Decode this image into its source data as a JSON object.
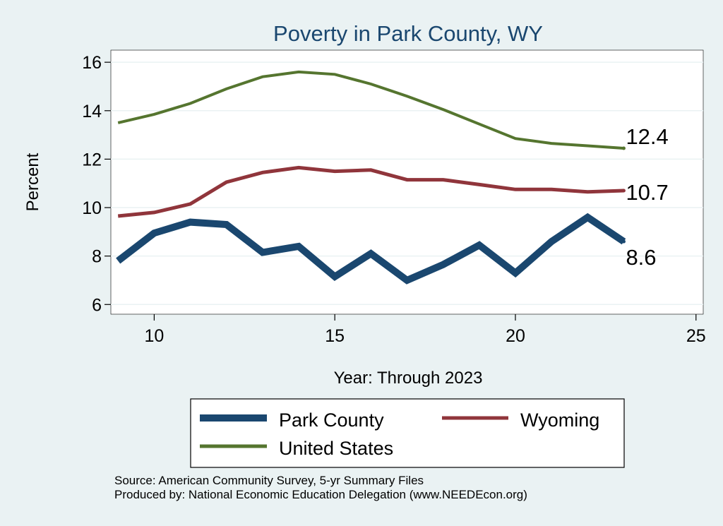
{
  "chart_data": {
    "type": "line",
    "title": "Poverty in Park County, WY",
    "xlabel": "Year: Through 2023",
    "ylabel": "Percent",
    "xlim": [
      8.8,
      25.2
    ],
    "ylim": [
      5.6,
      16.5
    ],
    "xticks": [
      10,
      15,
      20,
      25
    ],
    "yticks": [
      6,
      8,
      10,
      12,
      14,
      16
    ],
    "grid": "horizontal",
    "x": [
      9,
      10,
      11,
      12,
      13,
      14,
      15,
      16,
      17,
      18,
      19,
      20,
      21,
      22,
      23
    ],
    "series": [
      {
        "name": "Park County",
        "color": "#1a476f",
        "values": [
          7.8,
          8.95,
          9.4,
          9.3,
          8.15,
          8.4,
          7.15,
          8.1,
          7.0,
          7.65,
          8.45,
          7.3,
          8.6,
          9.6,
          8.6
        ],
        "end_label": "8.6"
      },
      {
        "name": "Wyoming",
        "color": "#90353b",
        "values": [
          9.65,
          9.8,
          10.15,
          11.05,
          11.45,
          11.65,
          11.5,
          11.55,
          11.15,
          11.15,
          10.95,
          10.75,
          10.75,
          10.65,
          10.7
        ],
        "end_label": "10.7"
      },
      {
        "name": "United States",
        "color": "#55752f",
        "values": [
          13.5,
          13.85,
          14.3,
          14.9,
          15.4,
          15.6,
          15.5,
          15.1,
          14.6,
          14.05,
          13.45,
          12.85,
          12.65,
          12.55,
          12.45
        ],
        "end_label": "12.4"
      }
    ],
    "legend": {
      "position": "bottom",
      "entries": [
        "Park County",
        "Wyoming",
        "United States"
      ]
    }
  },
  "footer": {
    "source": "Source: American Community Survey, 5-yr Summary Files",
    "produced_by": "Produced by: National Economic Education Delegation (www.NEEDEcon.org)"
  },
  "colors": {
    "background": "#eaf2f3",
    "plot_background": "#ffffff",
    "title": "#1a476f",
    "grid": "#eaf2f3"
  }
}
